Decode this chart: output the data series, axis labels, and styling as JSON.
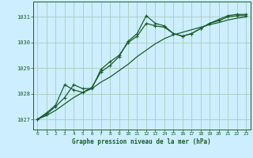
{
  "background_color": "#cceeff",
  "grid_color": "#aaccbb",
  "line_color": "#1a5c28",
  "title": "Graphe pression niveau de la mer (hPa)",
  "xlim": [
    -0.5,
    23.5
  ],
  "ylim": [
    1026.6,
    1031.6
  ],
  "yticks": [
    1027,
    1028,
    1029,
    1030,
    1031
  ],
  "xticks": [
    0,
    1,
    2,
    3,
    4,
    5,
    6,
    7,
    8,
    9,
    10,
    11,
    12,
    13,
    14,
    15,
    16,
    17,
    18,
    19,
    20,
    21,
    22,
    23
  ],
  "series1_marked": {
    "x": [
      0,
      1,
      2,
      3,
      4,
      5,
      6,
      7,
      8,
      9,
      10,
      11,
      12,
      13,
      14,
      15,
      16,
      17,
      18,
      19,
      20,
      21,
      22,
      23
    ],
    "y": [
      1027.0,
      1027.25,
      1027.55,
      1028.35,
      1028.15,
      1028.05,
      1028.25,
      1028.85,
      1029.1,
      1029.45,
      1030.05,
      1030.35,
      1031.05,
      1030.75,
      1030.65,
      1030.35,
      1030.25,
      1030.35,
      1030.55,
      1030.75,
      1030.9,
      1031.05,
      1031.1,
      1031.1
    ]
  },
  "series2_marked": {
    "x": [
      0,
      1,
      2,
      3,
      4,
      5,
      6,
      7,
      8,
      9,
      10,
      11,
      12,
      13,
      14,
      15,
      16,
      17,
      18,
      19,
      20,
      21,
      22,
      23
    ],
    "y": [
      1027.0,
      1027.2,
      1027.5,
      1027.85,
      1028.35,
      1028.2,
      1028.2,
      1028.95,
      1029.25,
      1029.5,
      1030.0,
      1030.25,
      1030.75,
      1030.65,
      1030.6,
      1030.35,
      1030.25,
      1030.35,
      1030.55,
      1030.75,
      1030.85,
      1031.0,
      1031.05,
      1031.05
    ]
  },
  "series3_smooth": {
    "x": [
      0,
      1,
      2,
      3,
      4,
      5,
      6,
      7,
      8,
      9,
      10,
      11,
      12,
      13,
      14,
      15,
      16,
      17,
      18,
      19,
      20,
      21,
      22,
      23
    ],
    "y": [
      1027.0,
      1027.15,
      1027.35,
      1027.6,
      1027.85,
      1028.05,
      1028.2,
      1028.45,
      1028.65,
      1028.9,
      1029.15,
      1029.45,
      1029.7,
      1029.95,
      1030.15,
      1030.3,
      1030.4,
      1030.5,
      1030.6,
      1030.7,
      1030.78,
      1030.88,
      1030.95,
      1031.0
    ]
  }
}
